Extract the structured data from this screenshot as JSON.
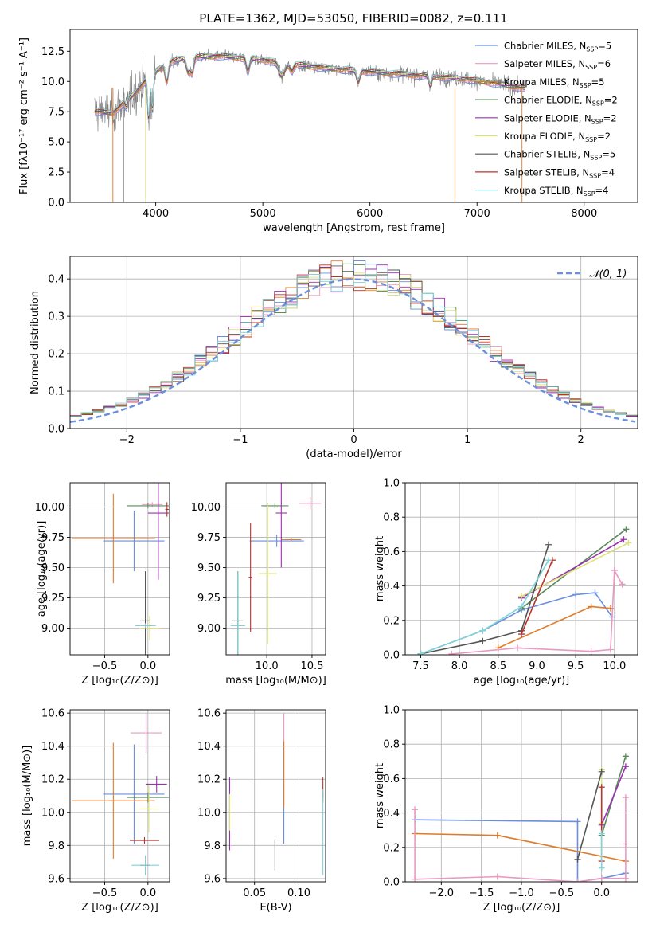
{
  "colors": {
    "chabrier_miles": "#6a8fdc",
    "salpeter_miles": "#e89ac2",
    "kroupa_miles": "#e07b2a",
    "chabrier_elodie": "#5a8a5a",
    "salpeter_elodie": "#9b30b0",
    "kroupa_elodie": "#dde27a",
    "chabrier_stelib": "#555555",
    "salpeter_stelib": "#b8332b",
    "kroupa_stelib": "#7fd4d8",
    "grid": "#b0b0b0",
    "noise": "#808080",
    "gauss": "#6a8fdc"
  },
  "chart_data": [
    {
      "type": "line",
      "title": "PLATE=1362, MJD=53050, FIBERID=0082, z=0.111",
      "xlabel": "wavelength [Angstrom, rest frame]",
      "ylabel": "Flux [fλ10⁻¹⁷ erg cm⁻² s⁻¹ A⁻¹]",
      "xlim": [
        3200,
        8500
      ],
      "ylim": [
        0,
        14.3
      ],
      "xticks": [
        "4000",
        "5000",
        "6000",
        "7000",
        "8000"
      ],
      "yticks": [
        "0.0",
        "2.5",
        "5.0",
        "7.5",
        "10.0",
        "12.5"
      ],
      "legend_position": "top-right",
      "grid": false,
      "data_wavelength_range": [
        3430,
        7450
      ],
      "series": [
        {
          "name": "Chabrier MILES, N",
          "sub": "SSP",
          "suffix": "=5",
          "key": "chabrier_miles"
        },
        {
          "name": "Salpeter MILES, N",
          "sub": "SSP",
          "suffix": "=6",
          "key": "salpeter_miles"
        },
        {
          "name": "Kroupa MILES, N",
          "sub": "SSP",
          "suffix": "=5",
          "key": "kroupa_miles"
        },
        {
          "name": "Chabrier ELODIE, N",
          "sub": "SSP",
          "suffix": "=2",
          "key": "chabrier_elodie"
        },
        {
          "name": "Salpeter ELODIE, N",
          "sub": "SSP",
          "suffix": "=2",
          "key": "salpeter_elodie"
        },
        {
          "name": "Kroupa ELODIE, N",
          "sub": "SSP",
          "suffix": "=2",
          "key": "kroupa_elodie"
        },
        {
          "name": "Chabrier STELIB, N",
          "sub": "SSP",
          "suffix": "=5",
          "key": "chabrier_stelib"
        },
        {
          "name": "Salpeter STELIB, N",
          "sub": "SSP",
          "suffix": "=4",
          "key": "salpeter_stelib"
        },
        {
          "name": "Kroupa STELIB, N",
          "sub": "SSP",
          "suffix": "=4",
          "key": "kroupa_stelib"
        }
      ],
      "continuum": [
        [
          3430,
          7.5
        ],
        [
          3600,
          7.4
        ],
        [
          3700,
          8.2
        ],
        [
          3800,
          9.0
        ],
        [
          3950,
          10.5
        ],
        [
          4100,
          11.5
        ],
        [
          4300,
          12.0
        ],
        [
          4600,
          12.1
        ],
        [
          5000,
          11.8
        ],
        [
          5200,
          11.4
        ],
        [
          5400,
          11.3
        ],
        [
          5700,
          11.0
        ],
        [
          6000,
          10.8
        ],
        [
          6300,
          10.6
        ],
        [
          6600,
          10.4
        ],
        [
          6900,
          10.2
        ],
        [
          7200,
          9.8
        ],
        [
          7450,
          9.4
        ]
      ]
    },
    {
      "type": "histogram",
      "xlabel": "(data-model)/error",
      "ylabel": "Normed distribution",
      "xlim": [
        -2.5,
        2.5
      ],
      "ylim": [
        0,
        0.46
      ],
      "xticks": [
        "−2",
        "−1",
        "0",
        "1",
        "2"
      ],
      "yticks": [
        "0.0",
        "0.1",
        "0.2",
        "0.3",
        "0.4"
      ],
      "grid": true,
      "legend_position": "top-right",
      "gauss_label": "𝒩(0, 1)",
      "bin_width": 0.1
    },
    {
      "type": "errorbar",
      "xlabel": "Z [log₁₀(Z/Z⊙)]",
      "ylabel": "age  [log₁₀(age/yr)]",
      "xlim": [
        -0.9,
        0.25
      ],
      "ylim": [
        8.78,
        10.2
      ],
      "xticks": [
        "−0.5",
        "0.0"
      ],
      "yticks": [
        "9.00",
        "9.25",
        "9.50",
        "9.75",
        "10.00"
      ],
      "grid": true,
      "points": [
        {
          "key": "chabrier_miles",
          "x": -0.16,
          "xerr": 0.35,
          "y": 9.72,
          "yerr": 0.25
        },
        {
          "key": "salpeter_miles",
          "x": 0.05,
          "xerr": 0.12,
          "y": 10.02,
          "yerr": 0.02
        },
        {
          "key": "kroupa_miles",
          "x": -0.4,
          "xerr": 0.48,
          "y": 9.74,
          "yerr": 0.37
        },
        {
          "key": "chabrier_elodie",
          "x": 0.0,
          "xerr": 0.24,
          "y": 10.01,
          "yerr": 0.02
        },
        {
          "key": "salpeter_elodie",
          "x": 0.12,
          "xerr": 0.12,
          "y": 9.95,
          "yerr": 0.55
        },
        {
          "key": "kroupa_elodie",
          "x": 0.02,
          "xerr": 0.12,
          "y": 9.0,
          "yerr": 0.1
        },
        {
          "key": "chabrier_stelib",
          "x": -0.03,
          "xerr": 0.06,
          "y": 9.06,
          "yerr": 0.41
        },
        {
          "key": "salpeter_stelib",
          "x": 0.22,
          "xerr": 0.02,
          "y": 9.98,
          "yerr": 0.06
        },
        {
          "key": "kroupa_stelib",
          "x": -0.03,
          "xerr": 0.12,
          "y": 9.02,
          "yerr": 0.02
        }
      ]
    },
    {
      "type": "errorbar",
      "xlabel": "mass [log₁₀(M/M⊙)]",
      "ylabel": "",
      "xlim": [
        9.55,
        10.65
      ],
      "ylim": [
        8.78,
        10.2
      ],
      "xticks": [
        "10.0",
        "10.5"
      ],
      "yticks": [
        "9.00",
        "9.25",
        "9.50",
        "9.75",
        "10.00"
      ],
      "grid": true,
      "points": [
        {
          "key": "chabrier_miles",
          "x": 10.11,
          "xerr": 0.3,
          "y": 9.72,
          "yerr": 0.05
        },
        {
          "key": "salpeter_miles",
          "x": 10.48,
          "xerr": 0.12,
          "y": 10.03,
          "yerr": 0.05
        },
        {
          "key": "kroupa_miles",
          "x": 10.27,
          "xerr": 0.11,
          "y": 9.73,
          "yerr": 0.01
        },
        {
          "key": "chabrier_elodie",
          "x": 10.09,
          "xerr": 0.15,
          "y": 10.01,
          "yerr": 0.02
        },
        {
          "key": "salpeter_elodie",
          "x": 10.16,
          "xerr": 0.06,
          "y": 9.95,
          "yerr": 0.45
        },
        {
          "key": "kroupa_elodie",
          "x": 10.01,
          "xerr": 0.1,
          "y": 9.45,
          "yerr": 0.58
        },
        {
          "key": "chabrier_stelib",
          "x": 9.68,
          "xerr": 0.06,
          "y": 9.06,
          "yerr": 0.41
        },
        {
          "key": "salpeter_stelib",
          "x": 9.82,
          "xerr": 0.02,
          "y": 9.42,
          "yerr": 0.45
        },
        {
          "key": "kroupa_stelib",
          "x": 9.68,
          "xerr": 0.08,
          "y": 9.02,
          "yerr": 0.45
        }
      ]
    },
    {
      "type": "line",
      "xlabel": "age  [log₁₀(age/yr)]",
      "ylabel": "mass weight",
      "xlim": [
        7.3,
        10.3
      ],
      "ylim": [
        0,
        1.0
      ],
      "xticks": [
        "7.5",
        "8.0",
        "8.5",
        "9.0",
        "9.5",
        "10.0"
      ],
      "yticks": [
        "0.0",
        "0.2",
        "0.4",
        "0.6",
        "0.8",
        "1.0"
      ],
      "grid": true,
      "series": [
        {
          "key": "chabrier_miles",
          "x": [
            7.5,
            8.3,
            8.8,
            9.5,
            9.75,
            9.97
          ],
          "y": [
            0.005,
            0.14,
            0.26,
            0.35,
            0.36,
            0.22
          ]
        },
        {
          "key": "kroupa_miles",
          "x": [
            8.5,
            9.7,
            9.95
          ],
          "y": [
            0.04,
            0.28,
            0.27
          ]
        },
        {
          "key": "salpeter_miles",
          "x": [
            7.9,
            8.75,
            9.7,
            9.95,
            10.0,
            10.1
          ],
          "y": [
            0.005,
            0.04,
            0.02,
            0.03,
            0.49,
            0.41
          ]
        },
        {
          "key": "chabrier_elodie",
          "x": [
            8.8,
            10.15
          ],
          "y": [
            0.27,
            0.73
          ]
        },
        {
          "key": "salpeter_elodie",
          "x": [
            8.8,
            10.12
          ],
          "y": [
            0.33,
            0.67
          ]
        },
        {
          "key": "kroupa_elodie",
          "x": [
            8.8,
            10.18
          ],
          "y": [
            0.34,
            0.65
          ]
        },
        {
          "key": "chabrier_stelib",
          "x": [
            7.5,
            8.3,
            8.8,
            9.15
          ],
          "y": [
            0.005,
            0.08,
            0.14,
            0.64
          ]
        },
        {
          "key": "salpeter_stelib",
          "x": [
            8.8,
            9.2
          ],
          "y": [
            0.12,
            0.55
          ]
        },
        {
          "key": "kroupa_stelib",
          "x": [
            7.5,
            8.3,
            8.8,
            9.15
          ],
          "y": [
            0.005,
            0.14,
            0.28,
            0.55
          ]
        }
      ]
    },
    {
      "type": "errorbar",
      "xlabel": "Z [log₁₀(Z/Z⊙)]",
      "ylabel": "mass [log₁₀(M/M⊙)]",
      "xlim": [
        -0.9,
        0.25
      ],
      "ylim": [
        9.58,
        10.62
      ],
      "xticks": [
        "−0.5",
        "0.0"
      ],
      "yticks": [
        "9.6",
        "9.8",
        "10.0",
        "10.2",
        "10.4",
        "10.6"
      ],
      "grid": true,
      "points": [
        {
          "key": "chabrier_miles",
          "x": -0.16,
          "xerr": 0.35,
          "y": 10.11,
          "yerr": 0.3
        },
        {
          "key": "salpeter_miles",
          "x": -0.02,
          "xerr": 0.18,
          "y": 10.48,
          "yerr": 0.12
        },
        {
          "key": "kroupa_miles",
          "x": -0.4,
          "xerr": 0.48,
          "y": 10.07,
          "yerr": 0.35
        },
        {
          "key": "chabrier_elodie",
          "x": 0.0,
          "xerr": 0.24,
          "y": 10.09,
          "yerr": 0.03
        },
        {
          "key": "salpeter_elodie",
          "x": 0.1,
          "xerr": 0.12,
          "y": 10.17,
          "yerr": 0.05
        },
        {
          "key": "kroupa_elodie",
          "x": 0.01,
          "xerr": 0.12,
          "y": 10.02,
          "yerr": 0.14
        },
        {
          "key": "chabrier_stelib",
          "x": -0.03,
          "xerr": 0.06,
          "y": 9.68,
          "yerr": 0.03
        },
        {
          "key": "salpeter_stelib",
          "x": -0.04,
          "xerr": 0.17,
          "y": 9.83,
          "yerr": 0.02
        },
        {
          "key": "kroupa_stelib",
          "x": -0.03,
          "xerr": 0.16,
          "y": 9.68,
          "yerr": 0.06
        }
      ]
    },
    {
      "type": "errorbar",
      "xlabel": "E(B-V)",
      "ylabel": "",
      "xlim": [
        0.018,
        0.13
      ],
      "ylim": [
        9.58,
        10.62
      ],
      "xticks": [
        "0.05",
        "0.10"
      ],
      "yticks": [
        "9.6",
        "9.8",
        "10.0",
        "10.2",
        "10.4",
        "10.6"
      ],
      "grid": true,
      "points": [
        {
          "key": "chabrier_miles",
          "x": 0.083,
          "xerr": 0,
          "y": 10.11,
          "yerr": 0.3
        },
        {
          "key": "salpeter_miles",
          "x": 0.083,
          "xerr": 0,
          "y": 10.32,
          "yerr": 0.28
        },
        {
          "key": "kroupa_miles",
          "x": 0.083,
          "xerr": 0,
          "y": 10.23,
          "yerr": 0.2
        },
        {
          "key": "chabrier_elodie",
          "x": 0.127,
          "xerr": 0,
          "y": 10.09,
          "yerr": 0.03
        },
        {
          "key": "salpeter_elodie",
          "x": 0.022,
          "xerr": 0,
          "y": 9.99,
          "yerr": 0.22
        },
        {
          "key": "kroupa_elodie",
          "x": 0.022,
          "xerr": 0,
          "y": 10.0,
          "yerr": 0.11
        },
        {
          "key": "chabrier_stelib",
          "x": 0.073,
          "xerr": 0,
          "y": 9.74,
          "yerr": 0.09
        },
        {
          "key": "salpeter_stelib",
          "x": 0.127,
          "xerr": 0,
          "y": 10.15,
          "yerr": 0.06
        },
        {
          "key": "kroupa_stelib",
          "x": 0.127,
          "xerr": 0,
          "y": 9.88,
          "yerr": 0.26
        }
      ]
    },
    {
      "type": "line",
      "xlabel": "Z [log₁₀(Z/Z⊙)]",
      "ylabel": "mass weight",
      "xlim": [
        -2.45,
        0.45
      ],
      "ylim": [
        0,
        1.0
      ],
      "xticks": [
        "−2.0",
        "−1.5",
        "−1.0",
        "−0.5",
        "0.0"
      ],
      "yticks": [
        "0.0",
        "0.2",
        "0.4",
        "0.6",
        "0.8",
        "1.0"
      ],
      "grid": true,
      "series": [
        {
          "key": "chabrier_miles",
          "x": [
            -2.33,
            -0.3,
            -0.3,
            0.0,
            0.3
          ],
          "y": [
            0.36,
            0.35,
            0.0,
            0.02,
            0.05
          ]
        },
        {
          "key": "kroupa_miles",
          "x": [
            -2.33,
            -1.3,
            0.3
          ],
          "y": [
            0.28,
            0.27,
            0.12
          ]
        },
        {
          "key": "salpeter_miles",
          "x": [
            -2.33,
            -2.33,
            -1.3,
            -0.3,
            0.0,
            0.3,
            0.3,
            0.3
          ],
          "y": [
            0.42,
            0.015,
            0.03,
            0.0,
            0.02,
            0.02,
            0.22,
            0.49
          ]
        },
        {
          "key": "chabrier_elodie",
          "x": [
            0.0,
            0.3
          ],
          "y": [
            0.27,
            0.73
          ]
        },
        {
          "key": "salpeter_elodie",
          "x": [
            0.0,
            0.3
          ],
          "y": [
            0.33,
            0.67
          ]
        },
        {
          "key": "kroupa_elodie",
          "x": [
            0.0,
            0.0
          ],
          "y": [
            0.34,
            0.65
          ]
        },
        {
          "key": "chabrier_stelib",
          "x": [
            -0.3,
            0.0
          ],
          "y": [
            0.13,
            0.64
          ]
        },
        {
          "key": "salpeter_stelib",
          "x": [
            0.0,
            0.0
          ],
          "y": [
            0.12,
            0.55
          ]
        },
        {
          "key": "kroupa_stelib",
          "x": [
            0.0,
            0.0
          ],
          "y": [
            0.08,
            0.28
          ]
        }
      ]
    }
  ]
}
